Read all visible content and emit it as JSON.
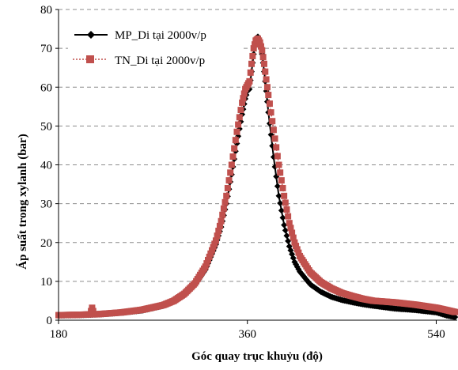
{
  "chart_data": {
    "type": "line",
    "title": "",
    "xlabel": "Góc quay trục khuỷu (độ)",
    "ylabel": "Áp suất trong xylanh (bar)",
    "xlim": [
      180,
      560
    ],
    "ylim": [
      0,
      80
    ],
    "xticks": [
      180,
      360,
      540
    ],
    "yticks": [
      0,
      10,
      20,
      30,
      40,
      50,
      60,
      70,
      80
    ],
    "grid": "horizontal-dashed",
    "legend_position": "top-left",
    "series": [
      {
        "name": "MP_Di tại 2000v/p",
        "color": "#000000",
        "marker": "diamond",
        "line": "solid",
        "x": [
          180,
          200,
          220,
          240,
          260,
          280,
          290,
          300,
          310,
          320,
          330,
          335,
          340,
          345,
          350,
          355,
          358,
          360,
          362,
          364,
          366,
          368,
          370,
          372,
          374,
          376,
          378,
          380,
          385,
          390,
          395,
          400,
          405,
          410,
          420,
          430,
          440,
          450,
          460,
          470,
          480,
          500,
          520,
          540,
          550,
          558
        ],
        "y": [
          1.2,
          1.3,
          1.5,
          1.9,
          2.5,
          3.7,
          4.8,
          6.4,
          9.0,
          13.0,
          19.5,
          24.0,
          30.0,
          37.5,
          45.5,
          53.0,
          57.0,
          59.0,
          59.5,
          64.0,
          68.5,
          72.5,
          73.0,
          71.5,
          68.5,
          64.0,
          59.0,
          53.5,
          42.0,
          32.0,
          24.5,
          19.0,
          15.0,
          12.5,
          9.2,
          7.3,
          6.0,
          5.2,
          4.6,
          4.1,
          3.7,
          3.0,
          2.6,
          2.0,
          1.2,
          0.8
        ]
      },
      {
        "name": "TN_Di tại 2000v/p",
        "color": "#c0504d",
        "marker": "square",
        "line": "dotted",
        "x": [
          180,
          200,
          210,
          212,
          214,
          220,
          240,
          260,
          280,
          290,
          300,
          310,
          320,
          330,
          335,
          340,
          345,
          350,
          355,
          358,
          360,
          362,
          364,
          366,
          368,
          370,
          372,
          374,
          376,
          378,
          380,
          385,
          390,
          395,
          400,
          405,
          410,
          420,
          430,
          440,
          450,
          460,
          470,
          480,
          500,
          520,
          540,
          550,
          558
        ],
        "y": [
          1.3,
          1.4,
          1.5,
          3.2,
          1.5,
          1.6,
          2.0,
          2.7,
          3.9,
          5.0,
          6.8,
          9.5,
          13.8,
          20.5,
          25.5,
          32.0,
          40.0,
          48.5,
          56.0,
          59.5,
          60.5,
          61.5,
          66.0,
          70.0,
          72.0,
          72.5,
          71.5,
          69.5,
          66.0,
          62.0,
          58.0,
          49.0,
          40.0,
          32.0,
          25.0,
          20.0,
          16.5,
          12.3,
          9.8,
          8.2,
          7.0,
          6.2,
          5.5,
          5.0,
          4.6,
          4.0,
          3.2,
          2.6,
          2.1
        ]
      }
    ]
  }
}
